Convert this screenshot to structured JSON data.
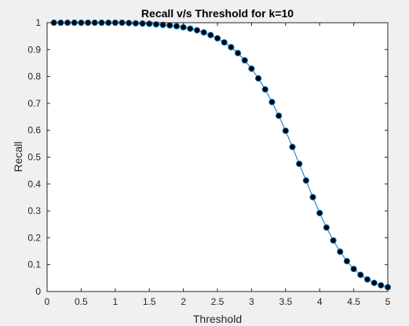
{
  "chart_data": {
    "type": "line",
    "title": "Recall v/s Threshold for k=10",
    "xlabel": "Threshold",
    "ylabel": "Recall",
    "xlim": [
      0,
      5
    ],
    "ylim": [
      0,
      1
    ],
    "xticks": [
      0,
      0.5,
      1,
      1.5,
      2,
      2.5,
      3,
      3.5,
      4,
      4.5,
      5
    ],
    "xtick_labels": [
      "0",
      "0.5",
      "1",
      "1.5",
      "2",
      "2.5",
      "3",
      "3.5",
      "4",
      "4.5",
      "5"
    ],
    "yticks": [
      0,
      0.1,
      0.2,
      0.3,
      0.4,
      0.5,
      0.6,
      0.7,
      0.8,
      0.9,
      1
    ],
    "ytick_labels": [
      "0",
      "0.1",
      "0.2",
      "0.3",
      "0.4",
      "0.5",
      "0.6",
      "0.7",
      "0.8",
      "0.9",
      "1"
    ],
    "grid": false,
    "line_color": "#0072bd",
    "marker_color": "#000000",
    "marker_edge_color": "#0072bd",
    "series": [
      {
        "x": [
          0.1,
          0.2,
          0.3,
          0.4,
          0.5,
          0.6,
          0.7,
          0.8,
          0.9,
          1.0,
          1.1,
          1.2,
          1.3,
          1.4,
          1.5,
          1.6,
          1.7,
          1.8,
          1.9,
          2.0,
          2.1,
          2.2,
          2.3,
          2.4,
          2.5,
          2.6,
          2.7,
          2.8,
          2.9,
          3.0,
          3.1,
          3.2,
          3.3,
          3.4,
          3.5,
          3.6,
          3.7,
          3.8,
          3.9,
          4.0,
          4.1,
          4.2,
          4.3,
          4.4,
          4.5,
          4.6,
          4.7,
          4.8,
          4.9,
          5.0
        ],
        "values": [
          1.0,
          1.0,
          1.0,
          1.0,
          1.0,
          1.0,
          1.0,
          1.0,
          1.0,
          1.0,
          1.0,
          0.999,
          0.998,
          0.997,
          0.996,
          0.994,
          0.992,
          0.99,
          0.987,
          0.983,
          0.978,
          0.972,
          0.964,
          0.954,
          0.942,
          0.927,
          0.909,
          0.887,
          0.86,
          0.829,
          0.793,
          0.752,
          0.705,
          0.654,
          0.598,
          0.538,
          0.475,
          0.413,
          0.351,
          0.292,
          0.238,
          0.19,
          0.148,
          0.113,
          0.084,
          0.062,
          0.045,
          0.032,
          0.023,
          0.016
        ]
      }
    ]
  }
}
